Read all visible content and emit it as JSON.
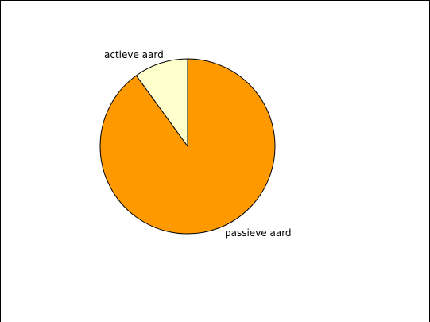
{
  "chart_data": {
    "type": "pie",
    "title": "",
    "labels": [
      "actieve aard",
      "passieve aard"
    ],
    "values": [
      10,
      90
    ],
    "colors": [
      "#FFFFCC",
      "#FF9900"
    ],
    "start_angle_deg": 0,
    "direction": "counterclockwise",
    "legend": "none",
    "outline_color": "#000000"
  }
}
